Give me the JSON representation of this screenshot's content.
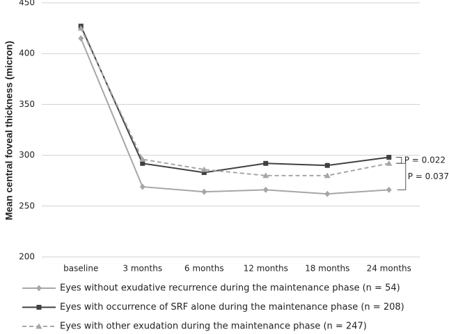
{
  "chart_data": {
    "type": "line",
    "y_label": "Mean central foveal thickness (micron)",
    "categories": [
      "baseline",
      "3 months",
      "6 months",
      "12 months",
      "18 months",
      "24 months"
    ],
    "series": [
      {
        "name": "Eyes without exudative recurrence during the maintenance phase (n = 54)",
        "color": "#a6a6a6",
        "marker": "diamond",
        "dashed": false,
        "values": [
          415,
          269,
          264,
          266,
          262,
          266
        ]
      },
      {
        "name": "Eyes with occurrence of SRF alone during the maintenance phase (n = 208)",
        "color": "#404040",
        "marker": "square",
        "dashed": false,
        "values": [
          427,
          292,
          283,
          292,
          290,
          298
        ]
      },
      {
        "name": "Eyes with other exudation during the maintenance phase (n = 247)",
        "color": "#a6a6a6",
        "marker": "triangle",
        "dashed": true,
        "values": [
          425,
          296,
          286,
          280,
          280,
          292
        ]
      }
    ],
    "annotations": [
      "P = 0.022",
      "P = 0.037"
    ],
    "ylim": [
      200,
      450
    ],
    "yticks": [
      200,
      250,
      300,
      350,
      400,
      450
    ],
    "grid": true
  }
}
